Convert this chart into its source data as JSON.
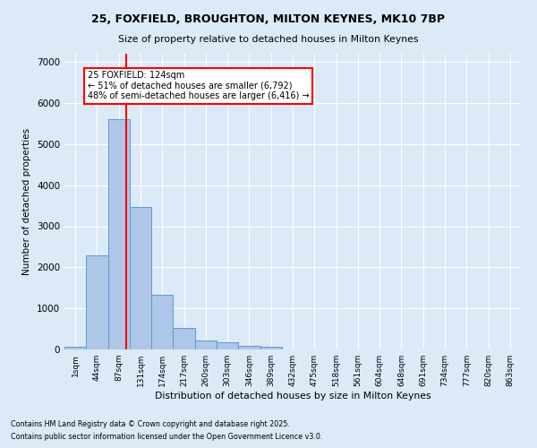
{
  "title_line1": "25, FOXFIELD, BROUGHTON, MILTON KEYNES, MK10 7BP",
  "title_line2": "Size of property relative to detached houses in Milton Keynes",
  "xlabel": "Distribution of detached houses by size in Milton Keynes",
  "ylabel": "Number of detached properties",
  "footnote1": "Contains HM Land Registry data © Crown copyright and database right 2025.",
  "footnote2": "Contains public sector information licensed under the Open Government Licence v3.0.",
  "bar_labels": [
    "1sqm",
    "44sqm",
    "87sqm",
    "131sqm",
    "174sqm",
    "217sqm",
    "260sqm",
    "303sqm",
    "346sqm",
    "389sqm",
    "432sqm",
    "475sqm",
    "518sqm",
    "561sqm",
    "604sqm",
    "648sqm",
    "691sqm",
    "734sqm",
    "777sqm",
    "820sqm",
    "863sqm"
  ],
  "bar_values": [
    75,
    2300,
    5600,
    3460,
    1330,
    520,
    220,
    170,
    95,
    55,
    0,
    0,
    0,
    0,
    0,
    0,
    0,
    0,
    0,
    0,
    0
  ],
  "bar_color": "#aec6e8",
  "bar_edge_color": "#5b9bd5",
  "background_color": "#dce9f7",
  "grid_color": "#ffffff",
  "vline_color": "red",
  "vline_x_index": 2,
  "annotation_text": "25 FOXFIELD: 124sqm\n← 51% of detached houses are smaller (6,792)\n48% of semi-detached houses are larger (6,416) →",
  "ylim": [
    0,
    7200
  ],
  "yticks": [
    0,
    1000,
    2000,
    3000,
    4000,
    5000,
    6000,
    7000
  ]
}
